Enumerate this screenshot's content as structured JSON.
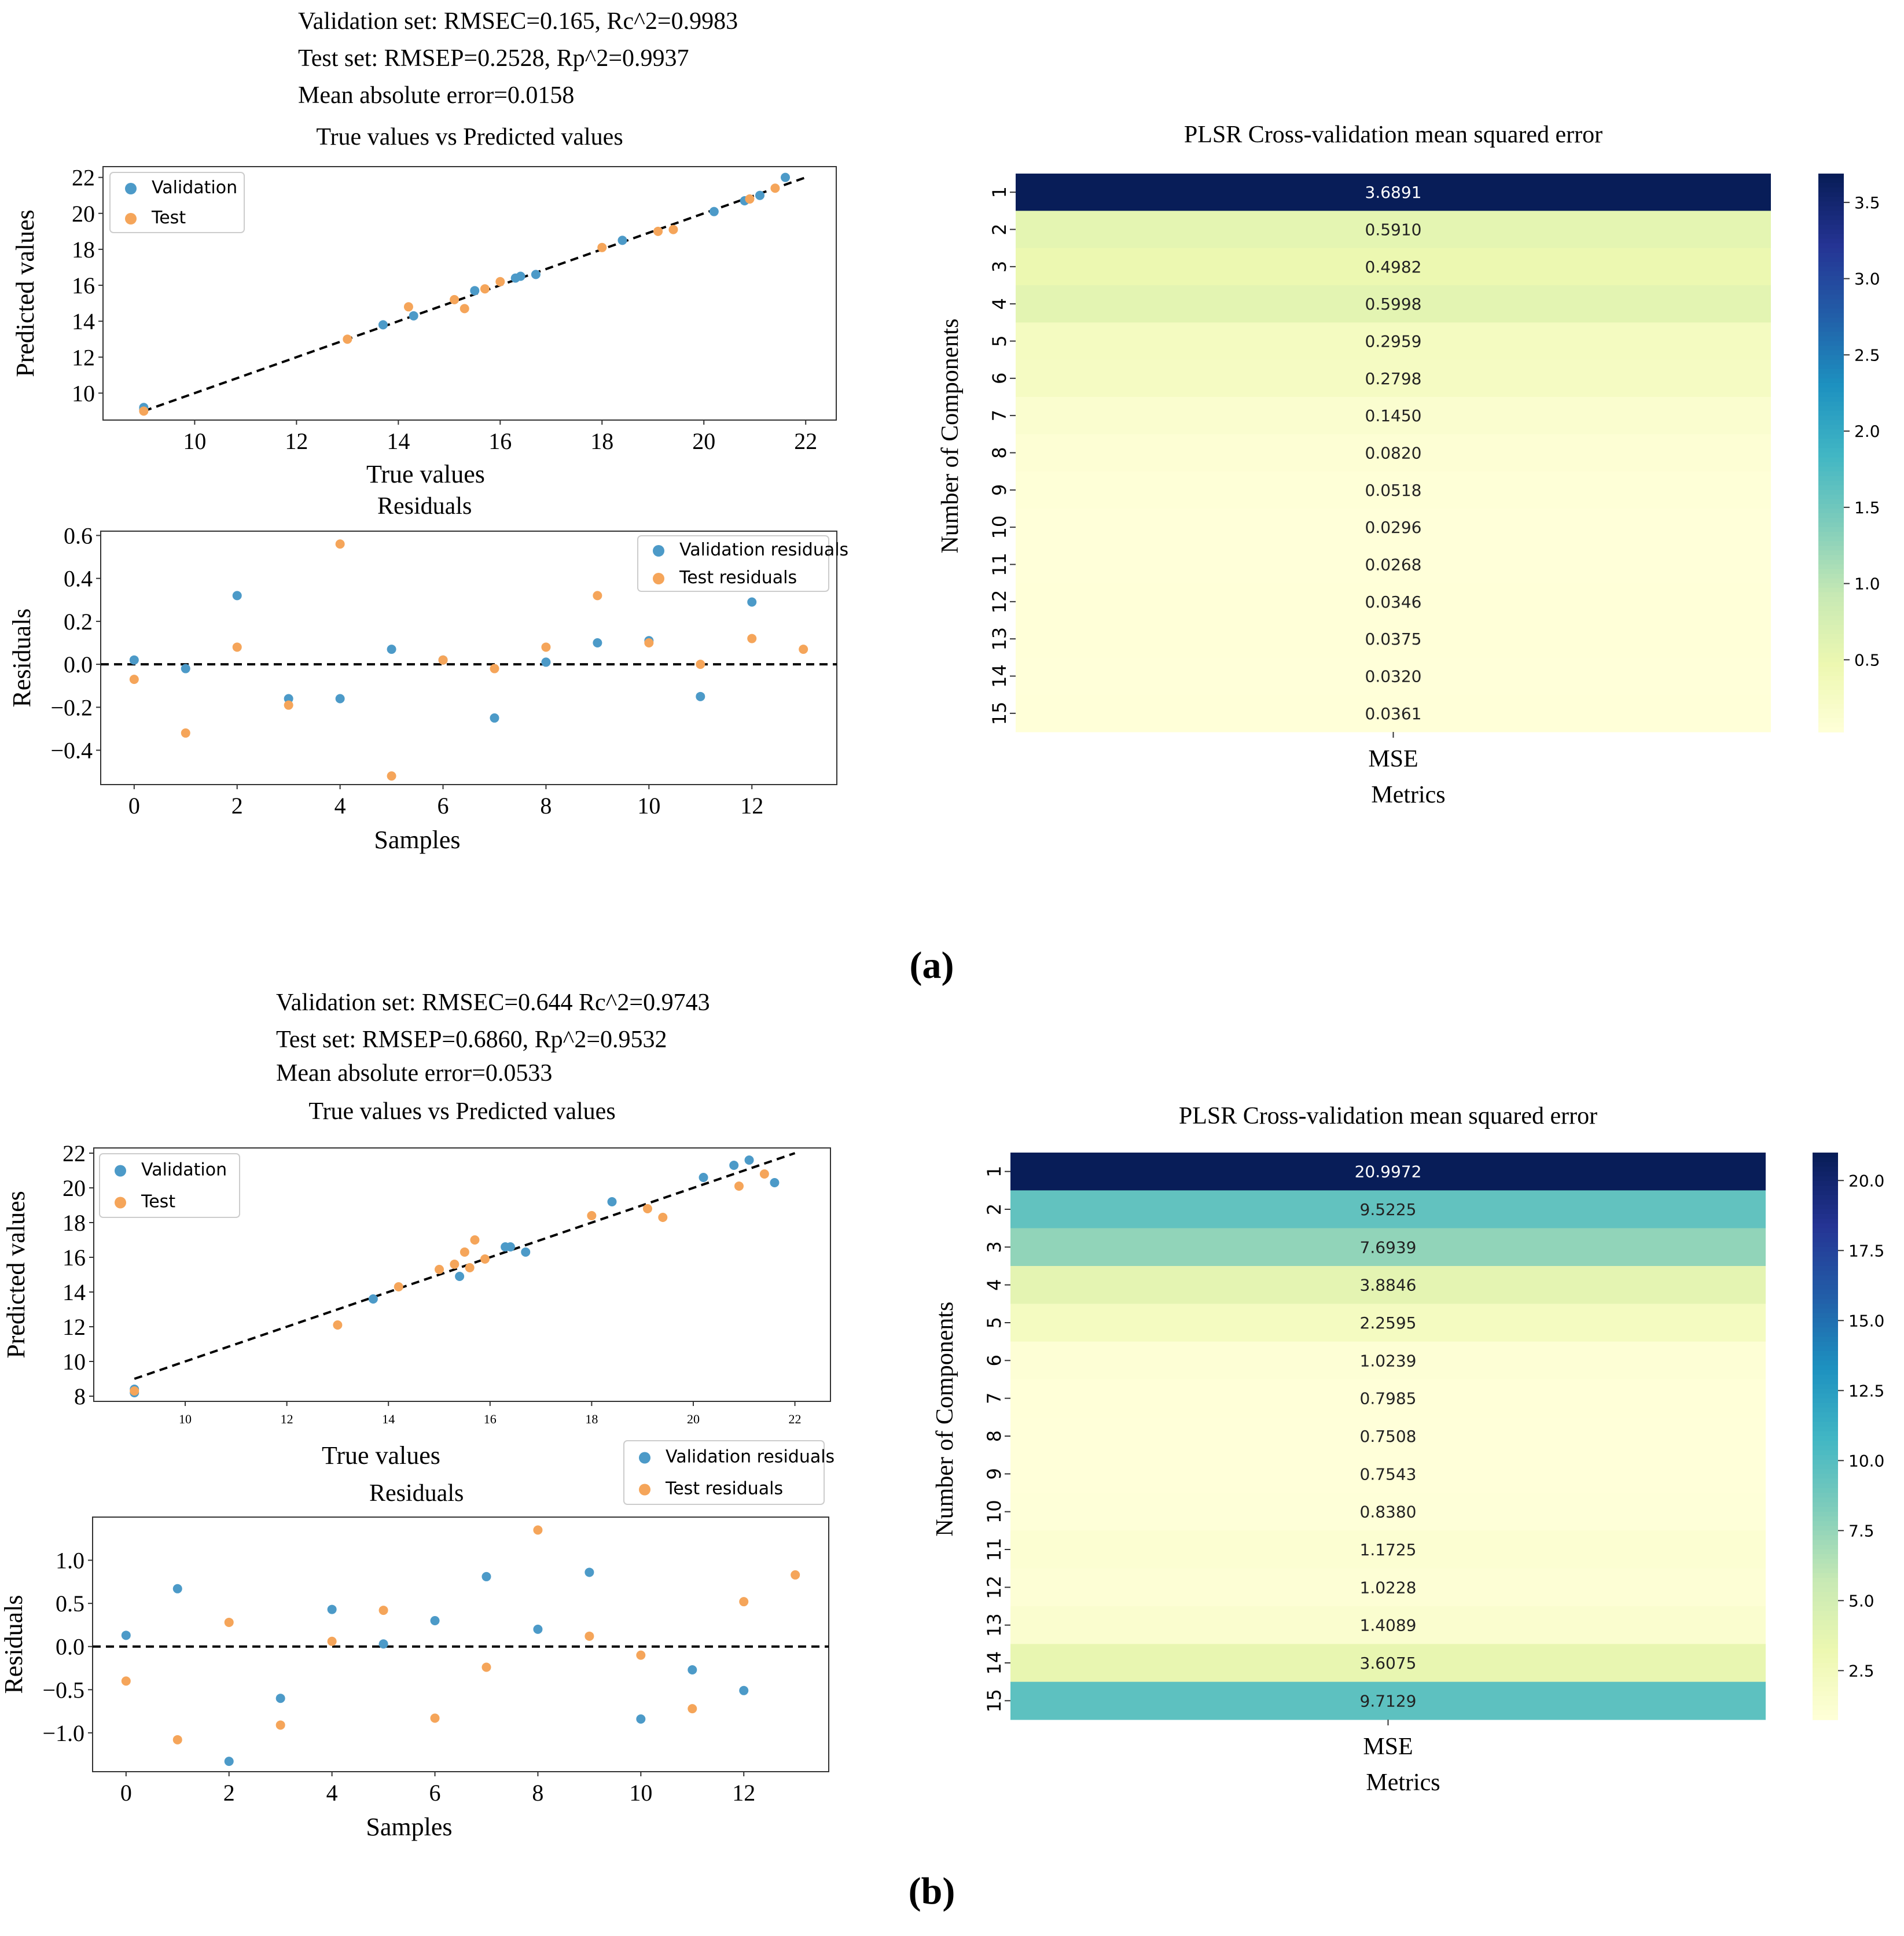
{
  "colors": {
    "validation": "#4c9ac8",
    "test": "#f5a55a",
    "refline": "#000000",
    "axis": "#333333",
    "cmap": [
      "#ffffd9",
      "#edf8b1",
      "#c7e9b4",
      "#7fcdbb",
      "#41b6c4",
      "#1d91c0",
      "#225ea8",
      "#253494",
      "#081d58"
    ],
    "cell_text_dark": "#222222",
    "cell_text_light": "#ffffff"
  },
  "panels": [
    {
      "label": "(a)",
      "stats": [
        "Validation set: RMSEC=0.165, Rc^2=0.9983",
        "Test set: RMSEP=0.2528, Rp^2=0.9937",
        "Mean absolute error=0.0158"
      ],
      "scatter": {
        "title": "True values vs Predicted values",
        "xlabel": "True values",
        "ylabel": "Predicted values",
        "xlim": [
          8.2,
          22.6
        ],
        "ylim": [
          8.5,
          22.6
        ],
        "xticks": [
          10,
          12,
          14,
          16,
          18,
          20,
          22
        ],
        "yticks": [
          10,
          12,
          14,
          16,
          18,
          20,
          22
        ],
        "legend": [
          "Validation",
          "Test"
        ],
        "refline": [
          [
            9,
            9
          ],
          [
            22,
            22
          ]
        ],
        "validation": [
          [
            9.0,
            9.1
          ],
          [
            9.0,
            9.2
          ],
          [
            13.7,
            13.8
          ],
          [
            14.3,
            14.3
          ],
          [
            15.5,
            15.7
          ],
          [
            16.3,
            16.4
          ],
          [
            16.4,
            16.5
          ],
          [
            16.7,
            16.6
          ],
          [
            18.4,
            18.5
          ],
          [
            20.2,
            20.1
          ],
          [
            20.8,
            20.7
          ],
          [
            21.1,
            21.0
          ],
          [
            21.6,
            22.0
          ]
        ],
        "test": [
          [
            9.0,
            9.0
          ],
          [
            13.0,
            13.0
          ],
          [
            14.2,
            14.8
          ],
          [
            15.1,
            15.2
          ],
          [
            15.3,
            14.7
          ],
          [
            15.7,
            15.8
          ],
          [
            16.0,
            16.2
          ],
          [
            18.0,
            18.1
          ],
          [
            19.1,
            19.0
          ],
          [
            19.4,
            19.1
          ],
          [
            20.9,
            20.8
          ],
          [
            21.4,
            21.4
          ]
        ]
      },
      "residuals": {
        "title": "Residuals",
        "xlabel": "Samples",
        "ylabel": "Residuals",
        "xlim": [
          -0.65,
          13.65
        ],
        "ylim": [
          -0.56,
          0.62
        ],
        "xticks": [
          0,
          2,
          4,
          6,
          8,
          10,
          12
        ],
        "yticks": [
          -0.4,
          -0.2,
          0.0,
          0.2,
          0.4,
          0.6
        ],
        "ytick_labels": [
          "−0.4",
          "−0.2",
          "0.0",
          "0.2",
          "0.4",
          "0.6"
        ],
        "legend": [
          "Validation residuals",
          "Test residuals"
        ],
        "legend_pos": "top-right",
        "validation": [
          0.02,
          -0.02,
          0.32,
          -0.16,
          -0.16,
          0.07,
          0.02,
          -0.25,
          0.01,
          0.1,
          0.11,
          -0.15,
          0.29
        ],
        "test": [
          -0.07,
          -0.32,
          0.08,
          -0.19,
          0.56,
          -0.52,
          0.02,
          -0.02,
          0.08,
          0.32,
          0.1,
          0.0,
          0.12,
          0.07
        ]
      },
      "heatmap": {
        "title": "PLSR Cross-validation mean squared error",
        "ylabel": "Number of Components",
        "xlabel": "Metrics",
        "column": "MSE",
        "rows": [
          "1",
          "2",
          "3",
          "4",
          "5",
          "6",
          "7",
          "8",
          "9",
          "10",
          "11",
          "12",
          "13",
          "14",
          "15"
        ],
        "values": [
          3.6891,
          0.591,
          0.4982,
          0.5998,
          0.2959,
          0.2798,
          0.145,
          0.082,
          0.0518,
          0.0296,
          0.0268,
          0.0346,
          0.0375,
          0.032,
          0.0361
        ],
        "labels": [
          "3.6891",
          "0.5910",
          "0.4982",
          "0.5998",
          "0.2959",
          "0.2798",
          "0.1450",
          "0.0820",
          "0.0518",
          "0.0296",
          "0.0268",
          "0.0346",
          "0.0375",
          "0.0320",
          "0.0361"
        ],
        "vmin": 0.0268,
        "vmax": 3.6891,
        "cbar_ticks": [
          0.5,
          1.0,
          1.5,
          2.0,
          2.5,
          3.0,
          3.5
        ],
        "cbar_labels": [
          "0.5",
          "1.0",
          "1.5",
          "2.0",
          "2.5",
          "3.0",
          "3.5"
        ]
      }
    },
    {
      "label": "(b)",
      "stats": [
        "Validation set: RMSEC=0.644  Rc^2=0.9743",
        "Test set: RMSEP=0.6860, Rp^2=0.9532",
        "Mean absolute error=0.0533"
      ],
      "scatter": {
        "title": "True values vs Predicted values",
        "xlabel": "True values",
        "ylabel": "Predicted values",
        "xlim": [
          8.2,
          22.7
        ],
        "ylim": [
          7.7,
          22.3
        ],
        "xticks": [
          10,
          12,
          14,
          16,
          18,
          20,
          22
        ],
        "yticks": [
          8,
          10,
          12,
          14,
          16,
          18,
          20,
          22
        ],
        "legend": [
          "Validation",
          "Test"
        ],
        "refline": [
          [
            9,
            9
          ],
          [
            22,
            22
          ]
        ],
        "validation": [
          [
            9.0,
            8.2
          ],
          [
            9.0,
            8.4
          ],
          [
            13.7,
            13.6
          ],
          [
            15.4,
            14.9
          ],
          [
            16.3,
            16.6
          ],
          [
            16.4,
            16.6
          ],
          [
            16.7,
            16.3
          ],
          [
            18.4,
            19.2
          ],
          [
            20.2,
            20.6
          ],
          [
            20.8,
            21.3
          ],
          [
            21.1,
            21.6
          ],
          [
            21.6,
            20.3
          ]
        ],
        "test": [
          [
            9.0,
            8.3
          ],
          [
            13.0,
            12.1
          ],
          [
            14.2,
            14.3
          ],
          [
            15.0,
            15.3
          ],
          [
            15.3,
            15.6
          ],
          [
            15.5,
            16.3
          ],
          [
            15.6,
            15.4
          ],
          [
            15.7,
            17.0
          ],
          [
            15.9,
            15.9
          ],
          [
            18.0,
            18.4
          ],
          [
            19.1,
            18.8
          ],
          [
            19.4,
            18.3
          ],
          [
            20.9,
            20.1
          ],
          [
            21.4,
            20.8
          ]
        ]
      },
      "residuals": {
        "title": "Residuals",
        "xlabel": "Samples",
        "ylabel": "Residuals",
        "xlim": [
          -0.65,
          13.65
        ],
        "ylim": [
          -1.45,
          1.5
        ],
        "xticks": [
          0,
          2,
          4,
          6,
          8,
          10,
          12
        ],
        "yticks": [
          -1.0,
          -0.5,
          0.0,
          0.5,
          1.0
        ],
        "ytick_labels": [
          "−1.0",
          "−0.5",
          "0.0",
          "0.5",
          "1.0"
        ],
        "legend": [
          "Validation residuals",
          "Test residuals"
        ],
        "legend_pos": "above-top-right",
        "validation": [
          0.13,
          0.67,
          -1.33,
          -0.6,
          0.43,
          0.03,
          0.3,
          0.81,
          0.2,
          0.86,
          -0.84,
          -0.27,
          -0.51
        ],
        "test": [
          -0.4,
          -1.08,
          0.28,
          -0.91,
          0.06,
          0.42,
          -0.83,
          -0.24,
          1.35,
          0.12,
          -0.1,
          -0.72,
          0.52,
          0.83
        ]
      },
      "heatmap": {
        "title": "PLSR Cross-validation mean squared error",
        "ylabel": "Number of Components",
        "xlabel": "Metrics",
        "column": "MSE",
        "rows": [
          "1",
          "2",
          "3",
          "4",
          "5",
          "6",
          "7",
          "8",
          "9",
          "10",
          "11",
          "12",
          "13",
          "14",
          "15"
        ],
        "values": [
          20.9972,
          9.5225,
          7.6939,
          3.8846,
          2.2595,
          1.0239,
          0.7985,
          0.7508,
          0.7543,
          0.838,
          1.1725,
          1.0228,
          1.4089,
          3.6075,
          9.7129
        ],
        "labels": [
          "20.9972",
          "9.5225",
          "7.6939",
          "3.8846",
          "2.2595",
          "1.0239",
          "0.7985",
          "0.7508",
          "0.7543",
          "0.8380",
          "1.1725",
          "1.0228",
          "1.4089",
          "3.6075",
          "9.7129"
        ],
        "vmin": 0.7508,
        "vmax": 20.9972,
        "cbar_ticks": [
          2.5,
          5.0,
          7.5,
          10.0,
          12.5,
          15.0,
          17.5,
          20.0
        ],
        "cbar_labels": [
          "2.5",
          "5.0",
          "7.5",
          "10.0",
          "12.5",
          "15.0",
          "17.5",
          "20.0"
        ]
      }
    }
  ],
  "chart_data": [
    {
      "type": "scatter",
      "panel": "(a)",
      "title": "True values vs Predicted values",
      "xlabel": "True values",
      "ylabel": "Predicted values",
      "series": [
        {
          "name": "Validation",
          "points": [
            [
              9.0,
              9.1
            ],
            [
              9.0,
              9.2
            ],
            [
              13.7,
              13.8
            ],
            [
              14.3,
              14.3
            ],
            [
              15.5,
              15.7
            ],
            [
              16.3,
              16.4
            ],
            [
              16.4,
              16.5
            ],
            [
              16.7,
              16.6
            ],
            [
              18.4,
              18.5
            ],
            [
              20.2,
              20.1
            ],
            [
              20.8,
              20.7
            ],
            [
              21.1,
              21.0
            ],
            [
              21.6,
              22.0
            ]
          ]
        },
        {
          "name": "Test",
          "points": [
            [
              9.0,
              9.0
            ],
            [
              13.0,
              13.0
            ],
            [
              14.2,
              14.8
            ],
            [
              15.1,
              15.2
            ],
            [
              15.3,
              14.7
            ],
            [
              15.7,
              15.8
            ],
            [
              16.0,
              16.2
            ],
            [
              18.0,
              18.1
            ],
            [
              19.1,
              19.0
            ],
            [
              19.4,
              19.1
            ],
            [
              20.9,
              20.8
            ],
            [
              21.4,
              21.4
            ]
          ]
        }
      ]
    },
    {
      "type": "scatter",
      "panel": "(a)",
      "title": "Residuals",
      "xlabel": "Samples",
      "ylabel": "Residuals",
      "series": [
        {
          "name": "Validation residuals",
          "values": [
            0.02,
            -0.02,
            0.32,
            -0.16,
            -0.16,
            0.07,
            0.02,
            -0.25,
            0.01,
            0.1,
            0.11,
            -0.15,
            0.29
          ]
        },
        {
          "name": "Test residuals",
          "values": [
            -0.07,
            -0.32,
            0.08,
            -0.19,
            0.56,
            -0.52,
            0.02,
            -0.02,
            0.08,
            0.32,
            0.1,
            0.0,
            0.12,
            0.07
          ]
        }
      ]
    },
    {
      "type": "heatmap",
      "panel": "(a)",
      "title": "PLSR Cross-validation mean squared error",
      "xlabel": "Metrics",
      "ylabel": "Number of Components",
      "categories": [
        "1",
        "2",
        "3",
        "4",
        "5",
        "6",
        "7",
        "8",
        "9",
        "10",
        "11",
        "12",
        "13",
        "14",
        "15"
      ],
      "series": [
        {
          "name": "MSE",
          "values": [
            3.6891,
            0.591,
            0.4982,
            0.5998,
            0.2959,
            0.2798,
            0.145,
            0.082,
            0.0518,
            0.0296,
            0.0268,
            0.0346,
            0.0375,
            0.032,
            0.0361
          ]
        }
      ]
    },
    {
      "type": "scatter",
      "panel": "(b)",
      "title": "True values vs Predicted values",
      "xlabel": "True values",
      "ylabel": "Predicted values",
      "series": [
        {
          "name": "Validation",
          "points": [
            [
              9.0,
              8.2
            ],
            [
              9.0,
              8.4
            ],
            [
              13.7,
              13.6
            ],
            [
              15.4,
              14.9
            ],
            [
              16.3,
              16.6
            ],
            [
              16.4,
              16.6
            ],
            [
              16.7,
              16.3
            ],
            [
              18.4,
              19.2
            ],
            [
              20.2,
              20.6
            ],
            [
              20.8,
              21.3
            ],
            [
              21.1,
              21.6
            ],
            [
              21.6,
              20.3
            ]
          ]
        },
        {
          "name": "Test",
          "points": [
            [
              9.0,
              8.3
            ],
            [
              13.0,
              12.1
            ],
            [
              14.2,
              14.3
            ],
            [
              15.0,
              15.3
            ],
            [
              15.3,
              15.6
            ],
            [
              15.5,
              16.3
            ],
            [
              15.6,
              15.4
            ],
            [
              15.7,
              17.0
            ],
            [
              15.9,
              15.9
            ],
            [
              18.0,
              18.4
            ],
            [
              19.1,
              18.8
            ],
            [
              19.4,
              18.3
            ],
            [
              20.9,
              20.1
            ],
            [
              21.4,
              20.8
            ]
          ]
        }
      ]
    },
    {
      "type": "scatter",
      "panel": "(b)",
      "title": "Residuals",
      "xlabel": "Samples",
      "ylabel": "Residuals",
      "series": [
        {
          "name": "Validation residuals",
          "values": [
            0.13,
            0.67,
            -1.33,
            -0.6,
            0.43,
            0.03,
            0.3,
            0.81,
            0.2,
            0.86,
            -0.84,
            -0.27,
            -0.51
          ]
        },
        {
          "name": "Test residuals",
          "values": [
            -0.4,
            -1.08,
            0.28,
            -0.91,
            0.06,
            0.42,
            -0.83,
            -0.24,
            1.35,
            0.12,
            -0.1,
            -0.72,
            0.52,
            0.83
          ]
        }
      ]
    },
    {
      "type": "heatmap",
      "panel": "(b)",
      "title": "PLSR Cross-validation mean squared error",
      "xlabel": "Metrics",
      "ylabel": "Number of Components",
      "categories": [
        "1",
        "2",
        "3",
        "4",
        "5",
        "6",
        "7",
        "8",
        "9",
        "10",
        "11",
        "12",
        "13",
        "14",
        "15"
      ],
      "series": [
        {
          "name": "MSE",
          "values": [
            20.9972,
            9.5225,
            7.6939,
            3.8846,
            2.2595,
            1.0239,
            0.7985,
            0.7508,
            0.7543,
            0.838,
            1.1725,
            1.0228,
            1.4089,
            3.6075,
            9.7129
          ]
        }
      ]
    }
  ]
}
